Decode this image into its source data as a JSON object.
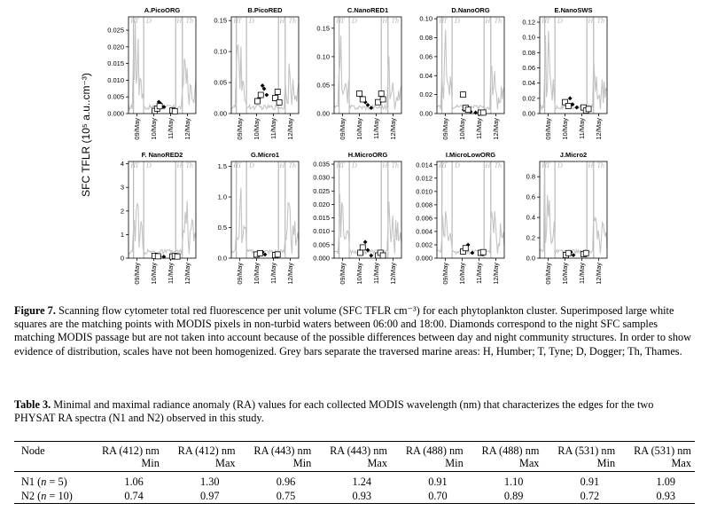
{
  "figure": {
    "ylabel": "SFC TFLR (10⁵ a.u..cm⁻³)",
    "zone_labels": [
      "H",
      "T",
      "D",
      "H",
      "Th"
    ],
    "colors": {
      "trace": "#c4c4c4",
      "bar": "#aaaaaa"
    },
    "chart_data": [
      {
        "type": "line",
        "title": "A.PicoORG",
        "xlabel": "",
        "ylabel": "SFC TFLR (10⁵ a.u..cm⁻³)",
        "ylim": [
          0,
          0.029
        ],
        "yticks": [
          0.0,
          0.005,
          0.01,
          0.015,
          0.02,
          0.025
        ],
        "ytick_labels": [
          "0.000",
          "0.005",
          "0.010",
          "0.015",
          "0.020",
          "0.025"
        ],
        "x_tick_labels": [
          "09/May",
          "10/May",
          "11/May",
          "12/May"
        ],
        "squares": [
          [
            1.55,
            0.0008
          ],
          [
            1.7,
            0.0015
          ],
          [
            1.85,
            0.0022
          ],
          [
            2.6,
            0.0009
          ],
          [
            2.75,
            0.0007
          ]
        ],
        "diamonds": [
          [
            1.6,
            0.0012
          ],
          [
            1.8,
            0.0035
          ],
          [
            1.9,
            0.003
          ],
          [
            2.1,
            0.002
          ],
          [
            2.7,
            0.0005
          ]
        ]
      },
      {
        "type": "line",
        "title": "B.PicoRED",
        "xlabel": "",
        "ylabel": "SFC TFLR (10⁵ a.u..cm⁻³)",
        "ylim": [
          0,
          0.156
        ],
        "yticks": [
          0.0,
          0.05,
          0.1,
          0.15
        ],
        "ytick_labels": [
          "0.00",
          "0.05",
          "0.10",
          "0.15"
        ],
        "x_tick_labels": [
          "09/May",
          "10/May",
          "11/May",
          "12/May"
        ],
        "squares": [
          [
            1.55,
            0.02
          ],
          [
            1.75,
            0.03
          ],
          [
            2.6,
            0.025
          ],
          [
            2.75,
            0.035
          ],
          [
            2.85,
            0.018
          ]
        ],
        "diamonds": [
          [
            1.65,
            0.025
          ],
          [
            1.85,
            0.045
          ],
          [
            1.95,
            0.04
          ],
          [
            2.1,
            0.03
          ],
          [
            2.7,
            0.022
          ]
        ]
      },
      {
        "type": "line",
        "title": "C.NanoRED1",
        "xlabel": "",
        "ylabel": "SFC TFLR (10⁵ a.u..cm⁻³)",
        "ylim": [
          0,
          0.17
        ],
        "yticks": [
          0.0,
          0.05,
          0.1,
          0.15
        ],
        "ytick_labels": [
          "0.00",
          "0.05",
          "0.10",
          "0.15"
        ],
        "x_tick_labels": [
          "09/May",
          "10/May",
          "11/May",
          "12/May"
        ],
        "squares": [
          [
            1.5,
            0.035
          ],
          [
            1.7,
            0.025
          ],
          [
            2.6,
            0.02
          ],
          [
            2.8,
            0.035
          ],
          [
            2.9,
            0.025
          ]
        ],
        "diamonds": [
          [
            1.6,
            0.03
          ],
          [
            1.85,
            0.02
          ],
          [
            2.0,
            0.015
          ],
          [
            2.2,
            0.01
          ],
          [
            2.7,
            0.02
          ]
        ]
      },
      {
        "type": "line",
        "title": "D.NanoORG",
        "xlabel": "",
        "ylabel": "SFC TFLR (10⁵ a.u..cm⁻³)",
        "ylim": [
          0,
          0.102
        ],
        "yticks": [
          0.0,
          0.02,
          0.04,
          0.06,
          0.08,
          0.1
        ],
        "ytick_labels": [
          "0.00",
          "0.02",
          "0.04",
          "0.06",
          "0.08",
          "0.10"
        ],
        "x_tick_labels": [
          "09/May",
          "10/May",
          "11/May",
          "12/May"
        ],
        "squares": [
          [
            1.55,
            0.02
          ],
          [
            1.7,
            0.006
          ],
          [
            1.85,
            0.004
          ],
          [
            2.6,
            0.001
          ],
          [
            2.75,
            0.001
          ]
        ],
        "diamonds": [
          [
            1.6,
            0.004
          ],
          [
            1.8,
            0.003
          ],
          [
            2.0,
            0.002
          ],
          [
            2.3,
            0.001
          ],
          [
            2.7,
            0.001
          ]
        ]
      },
      {
        "type": "line",
        "title": "E.NanoSWS",
        "xlabel": "",
        "ylabel": "SFC TFLR (10⁵ a.u..cm⁻³)",
        "ylim": [
          0,
          0.127
        ],
        "yticks": [
          0.0,
          0.02,
          0.04,
          0.06,
          0.08,
          0.1,
          0.12
        ],
        "ytick_labels": [
          "0.00",
          "0.02",
          "0.04",
          "0.06",
          "0.08",
          "0.10",
          "0.12"
        ],
        "x_tick_labels": [
          "09/May",
          "10/May",
          "11/May",
          "12/May"
        ],
        "squares": [
          [
            1.5,
            0.015
          ],
          [
            1.7,
            0.01
          ],
          [
            2.6,
            0.008
          ],
          [
            2.75,
            0.004
          ],
          [
            2.9,
            0.006
          ]
        ],
        "diamonds": [
          [
            1.6,
            0.012
          ],
          [
            1.8,
            0.02
          ],
          [
            1.95,
            0.012
          ],
          [
            2.2,
            0.008
          ],
          [
            2.7,
            0.006
          ]
        ]
      },
      {
        "type": "line",
        "title": "F. NanoRED2",
        "xlabel": "",
        "ylabel": "SFC TFLR (10⁵ a.u..cm⁻³)",
        "ylim": [
          0,
          4.1
        ],
        "yticks": [
          0,
          1,
          2,
          3,
          4
        ],
        "ytick_labels": [
          "0",
          "1",
          "2",
          "3",
          "4"
        ],
        "x_tick_labels": [
          "09/May",
          "10/May",
          "11/May",
          "12/May"
        ],
        "squares": [
          [
            1.55,
            0.1
          ],
          [
            1.75,
            0.08
          ],
          [
            2.6,
            0.07
          ],
          [
            2.75,
            0.09
          ],
          [
            2.9,
            0.07
          ]
        ],
        "diamonds": [
          [
            1.65,
            0.1
          ],
          [
            1.85,
            0.08
          ],
          [
            2.1,
            0.06
          ],
          [
            2.7,
            0.06
          ]
        ]
      },
      {
        "type": "line",
        "title": "G.Micro1",
        "xlabel": "",
        "ylabel": "SFC TFLR (10⁵ a.u..cm⁻³)",
        "ylim": [
          0,
          1.58
        ],
        "yticks": [
          0.0,
          0.5,
          1.0,
          1.5
        ],
        "ytick_labels": [
          "0.0",
          "0.5",
          "1.0",
          "1.5"
        ],
        "x_tick_labels": [
          "09/May",
          "10/May",
          "11/May",
          "12/May"
        ],
        "squares": [
          [
            1.5,
            0.06
          ],
          [
            1.7,
            0.08
          ],
          [
            2.6,
            0.05
          ],
          [
            2.75,
            0.06
          ]
        ],
        "diamonds": [
          [
            1.6,
            0.05
          ],
          [
            1.85,
            0.1
          ],
          [
            2.0,
            0.06
          ],
          [
            2.7,
            0.04
          ]
        ]
      },
      {
        "type": "line",
        "title": "H.MicroORG",
        "xlabel": "",
        "ylabel": "SFC TFLR (10⁵ a.u..cm⁻³)",
        "ylim": [
          0,
          0.036
        ],
        "yticks": [
          0.0,
          0.005,
          0.01,
          0.015,
          0.02,
          0.025,
          0.03,
          0.035
        ],
        "ytick_labels": [
          "0.000",
          "0.005",
          "0.010",
          "0.015",
          "0.020",
          "0.025",
          "0.030",
          "0.035"
        ],
        "x_tick_labels": [
          "09/May",
          "10/May",
          "11/May",
          "12/May"
        ],
        "squares": [
          [
            1.55,
            0.002
          ],
          [
            1.7,
            0.004
          ],
          [
            2.6,
            0.001
          ],
          [
            2.75,
            0.002
          ],
          [
            2.9,
            0.001
          ]
        ],
        "diamonds": [
          [
            1.6,
            0.003
          ],
          [
            1.85,
            0.006
          ],
          [
            2.0,
            0.003
          ],
          [
            2.2,
            0.001
          ],
          [
            2.7,
            0.002
          ]
        ]
      },
      {
        "type": "line",
        "title": "I.MicroLowORG",
        "xlabel": "",
        "ylabel": "SFC TFLR (10⁵ a.u..cm⁻³)",
        "ylim": [
          0,
          0.0145
        ],
        "yticks": [
          0.0,
          0.002,
          0.004,
          0.006,
          0.008,
          0.01,
          0.012,
          0.014
        ],
        "ytick_labels": [
          "0.000",
          "0.002",
          "0.004",
          "0.006",
          "0.008",
          "0.010",
          "0.012",
          "0.014"
        ],
        "x_tick_labels": [
          "09/May",
          "10/May",
          "11/May",
          "12/May"
        ],
        "squares": [
          [
            1.55,
            0.001
          ],
          [
            1.7,
            0.0015
          ],
          [
            2.6,
            0.0008
          ],
          [
            2.75,
            0.0009
          ]
        ],
        "diamonds": [
          [
            1.65,
            0.0012
          ],
          [
            1.85,
            0.002
          ],
          [
            2.1,
            0.0008
          ],
          [
            2.7,
            0.0006
          ]
        ]
      },
      {
        "type": "line",
        "title": "J.Micro2",
        "xlabel": "",
        "ylabel": "SFC TFLR (10⁵ a.u..cm⁻³)",
        "ylim": [
          0,
          0.95
        ],
        "yticks": [
          0.0,
          0.2,
          0.4,
          0.6,
          0.8
        ],
        "ytick_labels": [
          "0.0",
          "0.2",
          "0.4",
          "0.6",
          "0.8"
        ],
        "x_tick_labels": [
          "09/May",
          "10/May",
          "11/May",
          "12/May"
        ],
        "squares": [
          [
            1.55,
            0.03
          ],
          [
            1.7,
            0.05
          ],
          [
            2.6,
            0.04
          ],
          [
            2.75,
            0.05
          ]
        ],
        "diamonds": [
          [
            1.6,
            0.04
          ],
          [
            1.85,
            0.06
          ],
          [
            2.0,
            0.03
          ],
          [
            2.7,
            0.03
          ]
        ]
      }
    ]
  },
  "caption": {
    "label": "Figure 7.",
    "text": " Scanning flow cytometer total red fluorescence per unit volume (SFC TFLR cm⁻³) for each phytoplankton cluster. Superimposed large white squares are the matching points with MODIS pixels in non-turbid waters between 06:00 and 18:00. Diamonds correspond to the night SFC samples matching MODIS passage but are not taken into account because of the possible differences between day and night community structures. In order to show evidence of distribution, scales have not been homogenized. Grey bars separate the traversed marine areas: H, Humber; T, Tyne; D, Dogger; Th, Thames."
  },
  "table": {
    "label": "Table 3.",
    "caption": " Minimal and maximal radiance anomaly (RA) values for each collected MODIS wavelength (nm) that characterizes the edges for the two PHYSAT RA spectra (N1 and N2) observed in this study.",
    "headers": [
      {
        "line1": "Node",
        "line2": ""
      },
      {
        "line1": "RA (412) nm",
        "line2": "Min"
      },
      {
        "line1": "RA (412) nm",
        "line2": "Max"
      },
      {
        "line1": "RA (443) nm",
        "line2": "Min"
      },
      {
        "line1": "RA (443) nm",
        "line2": "Max"
      },
      {
        "line1": "RA (488) nm",
        "line2": "Min"
      },
      {
        "line1": "RA (488) nm",
        "line2": "Max"
      },
      {
        "line1": "RA (531) nm",
        "line2": "Min"
      },
      {
        "line1": "RA (531) nm",
        "line2": "Max"
      }
    ],
    "rows": [
      [
        "N1 (n = 5)",
        "1.06",
        "1.30",
        "0.96",
        "1.24",
        "0.91",
        "1.10",
        "0.91",
        "1.09"
      ],
      [
        "N2 (n = 10)",
        "0.74",
        "0.97",
        "0.75",
        "0.93",
        "0.70",
        "0.89",
        "0.72",
        "0.93"
      ]
    ]
  }
}
